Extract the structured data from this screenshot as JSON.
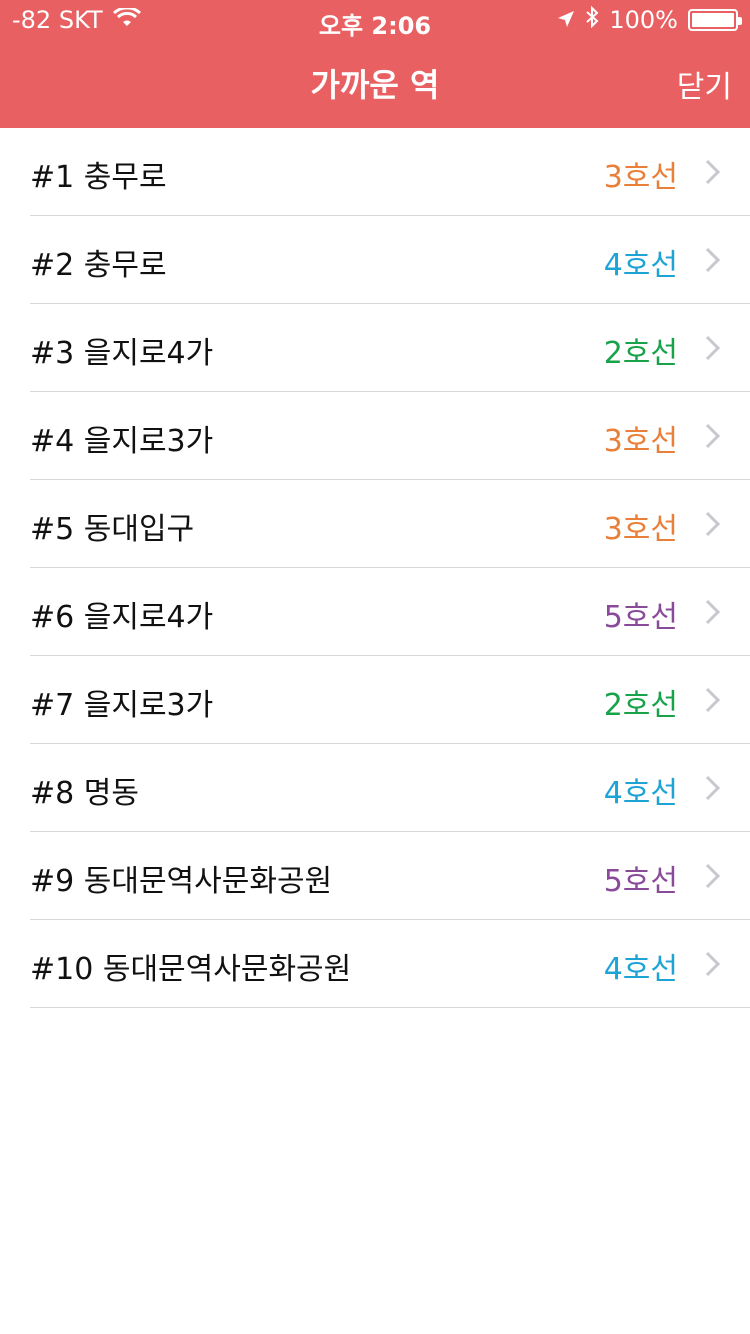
{
  "status_bar": {
    "carrier": "-82 SKT",
    "time": "오후 2:06",
    "battery": "100%",
    "battery_level": 1.0,
    "icons": [
      "wifi-icon",
      "location-arrow-icon",
      "bluetooth-icon",
      "battery-icon"
    ]
  },
  "nav": {
    "title": "가까운 역",
    "close_label": "닫기",
    "bar_color": "#e96062"
  },
  "line_colors": {
    "2": "#18a34a",
    "3": "#ea7f3a",
    "4": "#1ea3d5",
    "5": "#8a4a9a"
  },
  "stations": [
    {
      "name": "#1 충무로",
      "line": "3호선",
      "line_no": "3"
    },
    {
      "name": "#2 충무로",
      "line": "4호선",
      "line_no": "4"
    },
    {
      "name": "#3 을지로4가",
      "line": "2호선",
      "line_no": "2"
    },
    {
      "name": "#4 을지로3가",
      "line": "3호선",
      "line_no": "3"
    },
    {
      "name": "#5 동대입구",
      "line": "3호선",
      "line_no": "3"
    },
    {
      "name": "#6 을지로4가",
      "line": "5호선",
      "line_no": "5"
    },
    {
      "name": "#7 을지로3가",
      "line": "2호선",
      "line_no": "2"
    },
    {
      "name": "#8 명동",
      "line": "4호선",
      "line_no": "4"
    },
    {
      "name": "#9 동대문역사문화공원",
      "line": "5호선",
      "line_no": "5"
    },
    {
      "name": "#10 동대문역사문화공원",
      "line": "4호선",
      "line_no": "4"
    }
  ]
}
